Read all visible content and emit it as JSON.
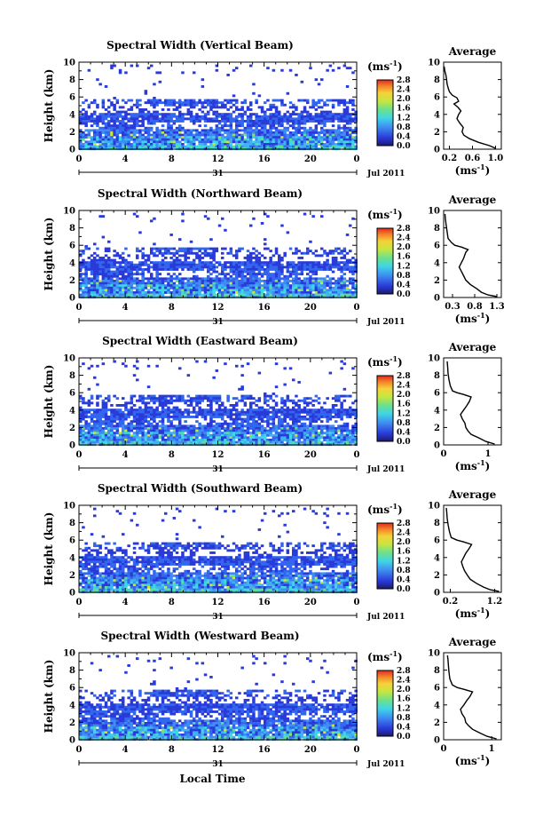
{
  "chart_data": [
    {
      "type": "heatmap",
      "title": "Spectral Width (Vertical Beam)",
      "ylabel": "Height (km)",
      "xlabel": "",
      "xlim": [
        0,
        24
      ],
      "ylim": [
        0,
        10
      ],
      "x_ticks": [
        "0",
        "4",
        "8",
        "12",
        "16",
        "20",
        "0"
      ],
      "y_ticks": [
        "0",
        "2",
        "4",
        "6",
        "8",
        "10"
      ],
      "date_label": "31",
      "month_label": "Jul 2011",
      "colorbar": {
        "unit": "(ms",
        "unit_exp": "-1",
        "unit_close": ")",
        "range": [
          0,
          2.8
        ],
        "ticks": [
          "0.0",
          "0.4",
          "0.8",
          "1.2",
          "1.6",
          "2.0",
          "2.4",
          "2.8"
        ]
      },
      "average": {
        "title": "Average",
        "xlabel": "(ms",
        "xlabel_exp": "-1",
        "xlabel_close": ")",
        "x_ticks": [
          "0.2",
          "0.6",
          "1.0"
        ],
        "xlim": [
          0.1,
          1.1
        ],
        "ylim": [
          0,
          10
        ],
        "y_ticks": [
          "0",
          "2",
          "4",
          "6",
          "8",
          "10"
        ],
        "profile": [
          [
            1.0,
            0.1
          ],
          [
            0.9,
            0.4
          ],
          [
            0.7,
            0.8
          ],
          [
            0.55,
            1.2
          ],
          [
            0.45,
            1.6
          ],
          [
            0.42,
            2.0
          ],
          [
            0.44,
            2.5
          ],
          [
            0.38,
            3.0
          ],
          [
            0.33,
            3.5
          ],
          [
            0.36,
            4.0
          ],
          [
            0.4,
            4.4
          ],
          [
            0.35,
            4.8
          ],
          [
            0.28,
            5.2
          ],
          [
            0.36,
            5.5
          ],
          [
            0.33,
            5.9
          ],
          [
            0.25,
            6.2
          ],
          [
            0.2,
            6.6
          ],
          [
            0.18,
            7.0
          ],
          [
            0.16,
            7.5
          ],
          [
            0.15,
            8.0
          ],
          [
            0.14,
            8.5
          ],
          [
            0.12,
            9.0
          ],
          [
            0.11,
            9.5
          ]
        ]
      }
    },
    {
      "type": "heatmap",
      "title": "Spectral Width (Northward Beam)",
      "ylabel": "Height (km)",
      "xlabel": "",
      "xlim": [
        0,
        24
      ],
      "ylim": [
        0,
        10
      ],
      "x_ticks": [
        "0",
        "4",
        "8",
        "12",
        "16",
        "20",
        "0"
      ],
      "y_ticks": [
        "0",
        "2",
        "4",
        "6",
        "8",
        "10"
      ],
      "date_label": "31",
      "month_label": "Jul 2011",
      "colorbar": {
        "unit": "(ms",
        "unit_exp": "-1",
        "unit_close": ")",
        "range": [
          0,
          2.8
        ],
        "ticks": [
          "0.0",
          "0.4",
          "0.8",
          "1.2",
          "1.6",
          "2.0",
          "2.4",
          "2.8"
        ]
      },
      "average": {
        "title": "Average",
        "xlabel": "(ms",
        "xlabel_exp": "-1",
        "xlabel_close": ")",
        "x_ticks": [
          "0.3",
          "0.8",
          "1.3"
        ],
        "xlim": [
          0.1,
          1.4
        ],
        "ylim": [
          0,
          10
        ],
        "y_ticks": [
          "0",
          "2",
          "4",
          "6",
          "8",
          "10"
        ],
        "profile": [
          [
            1.3,
            0.1
          ],
          [
            1.1,
            0.3
          ],
          [
            0.95,
            0.6
          ],
          [
            0.85,
            1.0
          ],
          [
            0.7,
            1.5
          ],
          [
            0.6,
            2.0
          ],
          [
            0.55,
            2.5
          ],
          [
            0.5,
            3.0
          ],
          [
            0.45,
            3.5
          ],
          [
            0.5,
            4.0
          ],
          [
            0.55,
            4.5
          ],
          [
            0.6,
            5.2
          ],
          [
            0.65,
            5.5
          ],
          [
            0.5,
            5.8
          ],
          [
            0.35,
            6.0
          ],
          [
            0.28,
            6.3
          ],
          [
            0.2,
            6.8
          ],
          [
            0.18,
            7.5
          ],
          [
            0.16,
            8.2
          ],
          [
            0.14,
            9.0
          ],
          [
            0.13,
            9.6
          ]
        ]
      }
    },
    {
      "type": "heatmap",
      "title": "Spectral Width (Eastward Beam)",
      "ylabel": "Height (km)",
      "xlabel": "",
      "xlim": [
        0,
        24
      ],
      "ylim": [
        0,
        10
      ],
      "x_ticks": [
        "0",
        "4",
        "8",
        "12",
        "16",
        "20",
        "0"
      ],
      "y_ticks": [
        "0",
        "2",
        "4",
        "6",
        "8",
        "10"
      ],
      "date_label": "31",
      "month_label": "Jul 2011",
      "colorbar": {
        "unit": "(ms",
        "unit_exp": "-1",
        "unit_close": ")",
        "range": [
          0,
          2.8
        ],
        "ticks": [
          "0.0",
          "0.4",
          "0.8",
          "1.2",
          "1.6",
          "2.0",
          "2.4",
          "2.8"
        ]
      },
      "average": {
        "title": "Average",
        "xlabel": "(ms",
        "xlabel_exp": "-1",
        "xlabel_close": ")",
        "x_ticks": [
          "0",
          "1"
        ],
        "xlim": [
          0,
          1.3
        ],
        "ylim": [
          0,
          10
        ],
        "y_ticks": [
          "0",
          "2",
          "4",
          "6",
          "8",
          "10"
        ],
        "profile": [
          [
            1.15,
            0.1
          ],
          [
            0.95,
            0.4
          ],
          [
            0.8,
            0.8
          ],
          [
            0.62,
            1.2
          ],
          [
            0.55,
            1.6
          ],
          [
            0.5,
            2.0
          ],
          [
            0.48,
            2.5
          ],
          [
            0.42,
            3.0
          ],
          [
            0.38,
            3.5
          ],
          [
            0.45,
            4.0
          ],
          [
            0.52,
            4.5
          ],
          [
            0.58,
            5.0
          ],
          [
            0.62,
            5.5
          ],
          [
            0.45,
            5.8
          ],
          [
            0.3,
            6.0
          ],
          [
            0.2,
            6.2
          ],
          [
            0.15,
            6.8
          ],
          [
            0.12,
            7.5
          ],
          [
            0.1,
            8.2
          ],
          [
            0.09,
            9.0
          ],
          [
            0.08,
            9.6
          ]
        ]
      }
    },
    {
      "type": "heatmap",
      "title": "Spectral Width (Southward Beam)",
      "ylabel": "Height (km)",
      "xlabel": "",
      "xlim": [
        0,
        24
      ],
      "ylim": [
        0,
        10
      ],
      "x_ticks": [
        "0",
        "4",
        "8",
        "12",
        "16",
        "20",
        "0"
      ],
      "y_ticks": [
        "0",
        "2",
        "4",
        "6",
        "8",
        "10"
      ],
      "date_label": "31",
      "month_label": "Jul 2011",
      "colorbar": {
        "unit": "(ms",
        "unit_exp": "-1",
        "unit_close": ")",
        "range": [
          0,
          2.8
        ],
        "ticks": [
          "0.0",
          "0.4",
          "0.8",
          "1.2",
          "1.6",
          "2.0",
          "2.4",
          "2.8"
        ]
      },
      "average": {
        "title": "Average",
        "xlabel": "(ms",
        "xlabel_exp": "-1",
        "xlabel_close": ")",
        "x_ticks": [
          "0.2",
          "1.2"
        ],
        "xlim": [
          0.05,
          1.35
        ],
        "ylim": [
          0,
          10
        ],
        "y_ticks": [
          "0",
          "2",
          "4",
          "6",
          "8",
          "10"
        ],
        "profile": [
          [
            1.3,
            0.1
          ],
          [
            1.1,
            0.3
          ],
          [
            0.95,
            0.6
          ],
          [
            0.8,
            1.0
          ],
          [
            0.65,
            1.5
          ],
          [
            0.58,
            2.0
          ],
          [
            0.52,
            2.5
          ],
          [
            0.48,
            3.0
          ],
          [
            0.45,
            3.5
          ],
          [
            0.5,
            4.0
          ],
          [
            0.55,
            4.5
          ],
          [
            0.62,
            5.0
          ],
          [
            0.68,
            5.5
          ],
          [
            0.5,
            5.8
          ],
          [
            0.35,
            6.0
          ],
          [
            0.22,
            6.3
          ],
          [
            0.18,
            7.0
          ],
          [
            0.15,
            7.8
          ],
          [
            0.13,
            8.5
          ],
          [
            0.12,
            9.2
          ],
          [
            0.11,
            9.7
          ]
        ]
      }
    },
    {
      "type": "heatmap",
      "title": "Spectral Width (Westward Beam)",
      "ylabel": "Height (km)",
      "xlabel": "Local Time",
      "xlim": [
        0,
        24
      ],
      "ylim": [
        0,
        10
      ],
      "x_ticks": [
        "0",
        "4",
        "8",
        "12",
        "16",
        "20",
        "0"
      ],
      "y_ticks": [
        "0",
        "2",
        "4",
        "6",
        "8",
        "10"
      ],
      "date_label": "31",
      "month_label": "Jul 2011",
      "colorbar": {
        "unit": "(ms",
        "unit_exp": "-1",
        "unit_close": ")",
        "range": [
          0,
          2.8
        ],
        "ticks": [
          "0.0",
          "0.4",
          "0.8",
          "1.2",
          "1.6",
          "2.0",
          "2.4",
          "2.8"
        ]
      },
      "average": {
        "title": "Average",
        "xlabel": "(ms",
        "xlabel_exp": "-1",
        "xlabel_close": ")",
        "x_ticks": [
          "0",
          "1"
        ],
        "xlim": [
          0,
          1.2
        ],
        "ylim": [
          0,
          10
        ],
        "y_ticks": [
          "0",
          "2",
          "4",
          "6",
          "8",
          "10"
        ],
        "profile": [
          [
            1.1,
            0.1
          ],
          [
            0.9,
            0.4
          ],
          [
            0.75,
            0.8
          ],
          [
            0.6,
            1.2
          ],
          [
            0.52,
            1.6
          ],
          [
            0.46,
            2.0
          ],
          [
            0.44,
            2.5
          ],
          [
            0.38,
            3.0
          ],
          [
            0.35,
            3.5
          ],
          [
            0.42,
            4.0
          ],
          [
            0.48,
            4.5
          ],
          [
            0.55,
            5.0
          ],
          [
            0.6,
            5.5
          ],
          [
            0.42,
            5.8
          ],
          [
            0.28,
            6.0
          ],
          [
            0.18,
            6.3
          ],
          [
            0.13,
            7.0
          ],
          [
            0.11,
            7.8
          ],
          [
            0.1,
            8.5
          ],
          [
            0.09,
            9.2
          ],
          [
            0.08,
            9.7
          ]
        ]
      }
    }
  ]
}
